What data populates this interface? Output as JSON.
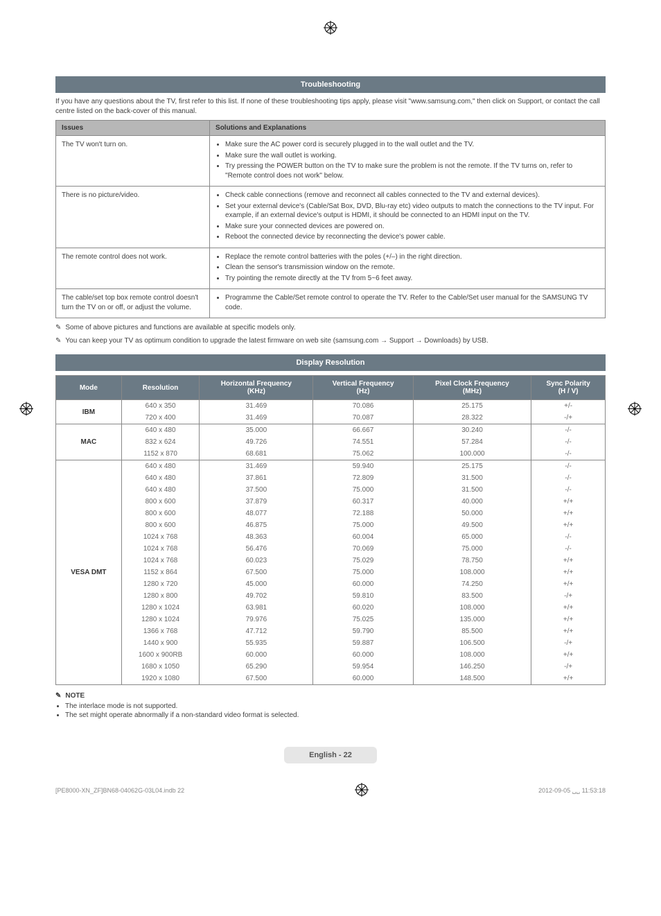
{
  "croptarget": {
    "color": "#000000"
  },
  "troubleshooting": {
    "title": "Troubleshooting",
    "intro": "If you have any questions about the TV, first refer to this list. If none of these troubleshooting tips apply, please visit \"www.samsung.com,\" then click on Support, or contact the call centre listed on the back-cover of this manual.",
    "col_issues": "Issues",
    "col_solutions": "Solutions and Explanations",
    "rows": [
      {
        "issue": "The TV won't turn on.",
        "bullets": [
          "Make sure the AC power cord is securely plugged in to the wall outlet and the TV.",
          "Make sure the wall outlet is working.",
          "Try pressing the POWER button on the TV to make sure the problem is not the remote. If the TV turns on, refer to \"Remote control does not work\" below."
        ]
      },
      {
        "issue": "There is no picture/video.",
        "bullets": [
          "Check cable connections (remove and reconnect all cables connected to the TV and external devices).",
          "Set your external device's (Cable/Sat Box, DVD, Blu-ray etc) video outputs to match the connections to the TV input. For example, if an external device's output is HDMI, it should be connected to an HDMI input on the TV.",
          "Make sure your connected devices are powered on.",
          "Reboot the connected device by reconnecting the device's power cable."
        ]
      },
      {
        "issue": "The remote control does not work.",
        "bullets": [
          "Replace the remote control batteries with the poles (+/–) in the right direction.",
          "Clean the sensor's transmission window on the remote.",
          "Try pointing the remote directly at the TV from 5~6 feet away."
        ]
      },
      {
        "issue": "The cable/set top box remote control doesn't turn the TV on or off, or adjust the volume.",
        "bullets": [
          "Programme the Cable/Set remote control to operate the TV. Refer to the Cable/Set user manual for the SAMSUNG TV code."
        ]
      }
    ],
    "footnote1": "Some of above pictures and functions are available at specific models only.",
    "footnote2": "You can keep your TV as optimum condition to upgrade the latest firmware on web site (samsung.com → Support → Downloads) by USB."
  },
  "displayres": {
    "title": "Display Resolution",
    "headers": {
      "mode": "Mode",
      "res": "Resolution",
      "hf": "Horizontal Frequency\n(KHz)",
      "vf": "Vertical Frequency\n(Hz)",
      "pcf": "Pixel Clock Frequency\n(MHz)",
      "sp": "Sync Polarity\n(H / V)"
    },
    "groups": [
      {
        "mode": "IBM",
        "rows": [
          {
            "res": "640 x 350",
            "hf": "31.469",
            "vf": "70.086",
            "pcf": "25.175",
            "sp": "+/-"
          },
          {
            "res": "720 x 400",
            "hf": "31.469",
            "vf": "70.087",
            "pcf": "28.322",
            "sp": "-/+"
          }
        ]
      },
      {
        "mode": "MAC",
        "rows": [
          {
            "res": "640 x 480",
            "hf": "35.000",
            "vf": "66.667",
            "pcf": "30.240",
            "sp": "-/-"
          },
          {
            "res": "832 x 624",
            "hf": "49.726",
            "vf": "74.551",
            "pcf": "57.284",
            "sp": "-/-"
          },
          {
            "res": "1152 x 870",
            "hf": "68.681",
            "vf": "75.062",
            "pcf": "100.000",
            "sp": "-/-"
          }
        ]
      },
      {
        "mode": "VESA DMT",
        "rows": [
          {
            "res": "640 x 480",
            "hf": "31.469",
            "vf": "59.940",
            "pcf": "25.175",
            "sp": "-/-"
          },
          {
            "res": "640 x 480",
            "hf": "37.861",
            "vf": "72.809",
            "pcf": "31.500",
            "sp": "-/-"
          },
          {
            "res": "640 x 480",
            "hf": "37.500",
            "vf": "75.000",
            "pcf": "31.500",
            "sp": "-/-"
          },
          {
            "res": "800 x 600",
            "hf": "37.879",
            "vf": "60.317",
            "pcf": "40.000",
            "sp": "+/+"
          },
          {
            "res": "800 x 600",
            "hf": "48.077",
            "vf": "72.188",
            "pcf": "50.000",
            "sp": "+/+"
          },
          {
            "res": "800 x 600",
            "hf": "46.875",
            "vf": "75.000",
            "pcf": "49.500",
            "sp": "+/+"
          },
          {
            "res": "1024 x 768",
            "hf": "48.363",
            "vf": "60.004",
            "pcf": "65.000",
            "sp": "-/-"
          },
          {
            "res": "1024 x 768",
            "hf": "56.476",
            "vf": "70.069",
            "pcf": "75.000",
            "sp": "-/-"
          },
          {
            "res": "1024 x 768",
            "hf": "60.023",
            "vf": "75.029",
            "pcf": "78.750",
            "sp": "+/+"
          },
          {
            "res": "1152 x 864",
            "hf": "67.500",
            "vf": "75.000",
            "pcf": "108.000",
            "sp": "+/+"
          },
          {
            "res": "1280 x 720",
            "hf": "45.000",
            "vf": "60.000",
            "pcf": "74.250",
            "sp": "+/+"
          },
          {
            "res": "1280 x 800",
            "hf": "49.702",
            "vf": "59.810",
            "pcf": "83.500",
            "sp": "-/+"
          },
          {
            "res": "1280 x 1024",
            "hf": "63.981",
            "vf": "60.020",
            "pcf": "108.000",
            "sp": "+/+"
          },
          {
            "res": "1280 x 1024",
            "hf": "79.976",
            "vf": "75.025",
            "pcf": "135.000",
            "sp": "+/+"
          },
          {
            "res": "1366 x 768",
            "hf": "47.712",
            "vf": "59.790",
            "pcf": "85.500",
            "sp": "+/+"
          },
          {
            "res": "1440 x 900",
            "hf": "55.935",
            "vf": "59.887",
            "pcf": "106.500",
            "sp": "-/+"
          },
          {
            "res": "1600 x 900RB",
            "hf": "60.000",
            "vf": "60.000",
            "pcf": "108.000",
            "sp": "+/+"
          },
          {
            "res": "1680 x 1050",
            "hf": "65.290",
            "vf": "59.954",
            "pcf": "146.250",
            "sp": "-/+"
          },
          {
            "res": "1920 x 1080",
            "hf": "67.500",
            "vf": "60.000",
            "pcf": "148.500",
            "sp": "+/+"
          }
        ]
      }
    ]
  },
  "notes": {
    "heading": "NOTE",
    "items": [
      "The interlace mode is not supported.",
      "The set might operate abnormally if a non-standard video format is selected."
    ]
  },
  "footer": {
    "page_label": "English - 22",
    "bottom_left": "[PE8000-XN_ZF]BN68-04062G-03L04.indb   22",
    "bottom_right": "2012-09-05   ␣␣ 11:53:18"
  }
}
